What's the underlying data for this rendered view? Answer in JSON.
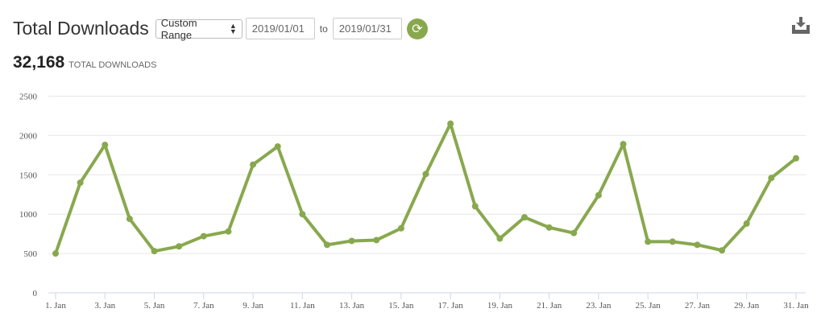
{
  "header": {
    "title": "Total Downloads",
    "range_select": "Custom Range",
    "date_from": "2019/01/01",
    "to_label": "to",
    "date_to": "2019/01/31",
    "refresh_icon": "refresh-icon",
    "download_icon": "download-icon"
  },
  "summary": {
    "total": "32,168",
    "label": "TOTAL DOWNLOADS"
  },
  "colors": {
    "accent": "#88a84e",
    "line": "#88a84e",
    "grid": "#e6e6e6"
  },
  "chart_data": {
    "type": "line",
    "title": "",
    "xlabel": "",
    "ylabel": "",
    "ylim": [
      0,
      2500
    ],
    "yticks": [
      "0",
      "500",
      "1000",
      "1500",
      "2000",
      "2500"
    ],
    "grid": true,
    "x": [
      "1. Jan",
      "2. Jan",
      "3. Jan",
      "4. Jan",
      "5. Jan",
      "6. Jan",
      "7. Jan",
      "8. Jan",
      "9. Jan",
      "10. Jan",
      "11. Jan",
      "12. Jan",
      "13. Jan",
      "14. Jan",
      "15. Jan",
      "16. Jan",
      "17. Jan",
      "18. Jan",
      "19. Jan",
      "20. Jan",
      "21. Jan",
      "22. Jan",
      "23. Jan",
      "24. Jan",
      "25. Jan",
      "26. Jan",
      "27. Jan",
      "28. Jan",
      "29. Jan",
      "30. Jan",
      "31. Jan"
    ],
    "xtick_labels": [
      "1. Jan",
      "3. Jan",
      "5. Jan",
      "7. Jan",
      "9. Jan",
      "11. Jan",
      "13. Jan",
      "15. Jan",
      "17. Jan",
      "19. Jan",
      "21. Jan",
      "23. Jan",
      "25. Jan",
      "27. Jan",
      "29. Jan",
      "31. Jan"
    ],
    "series": [
      {
        "values": [
          500,
          1400,
          1880,
          940,
          530,
          590,
          720,
          780,
          1630,
          1860,
          1000,
          610,
          660,
          670,
          820,
          1510,
          2150,
          1100,
          690,
          960,
          830,
          760,
          1240,
          1890,
          650,
          650,
          610,
          540,
          880,
          1460,
          1710
        ]
      }
    ]
  }
}
